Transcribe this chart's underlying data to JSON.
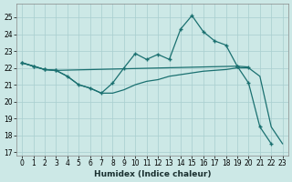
{
  "xlabel": "Humidex (Indice chaleur)",
  "bg_color": "#cce8e6",
  "grid_color": "#a8cece",
  "line_color": "#1a7070",
  "xlim": [
    -0.5,
    23.5
  ],
  "ylim": [
    16.8,
    25.8
  ],
  "yticks": [
    17,
    18,
    19,
    20,
    21,
    22,
    23,
    24,
    25
  ],
  "xticks": [
    0,
    1,
    2,
    3,
    4,
    5,
    6,
    7,
    8,
    9,
    10,
    11,
    12,
    13,
    14,
    15,
    16,
    17,
    18,
    19,
    20,
    21,
    22,
    23
  ],
  "line1_x": [
    0,
    1,
    2,
    3,
    4,
    5,
    6,
    7,
    8,
    9,
    10,
    11,
    12,
    13,
    14,
    15,
    16,
    17,
    18,
    19,
    20,
    21,
    22,
    23
  ],
  "line1_y": [
    22.3,
    22.1,
    21.9,
    21.85,
    21.5,
    21.0,
    20.8,
    20.5,
    20.5,
    20.7,
    21.0,
    21.2,
    21.3,
    21.5,
    21.6,
    21.7,
    21.8,
    21.85,
    21.9,
    22.0,
    22.0,
    21.5,
    18.5,
    17.5
  ],
  "line2_x": [
    0,
    1,
    2,
    3,
    4,
    5,
    6,
    7,
    8,
    9,
    10,
    11,
    12,
    13,
    14,
    15,
    16,
    17,
    18,
    19,
    20,
    21,
    22
  ],
  "line2_y": [
    22.3,
    22.1,
    21.9,
    21.85,
    21.5,
    21.0,
    20.8,
    20.5,
    21.1,
    22.0,
    22.85,
    22.5,
    22.8,
    22.5,
    24.3,
    25.1,
    24.15,
    23.6,
    23.35,
    22.1,
    21.1,
    18.5,
    17.5
  ],
  "line3_x": [
    0,
    1,
    2,
    3,
    19,
    20
  ],
  "line3_y": [
    22.3,
    22.1,
    21.9,
    21.85,
    22.1,
    22.05
  ]
}
